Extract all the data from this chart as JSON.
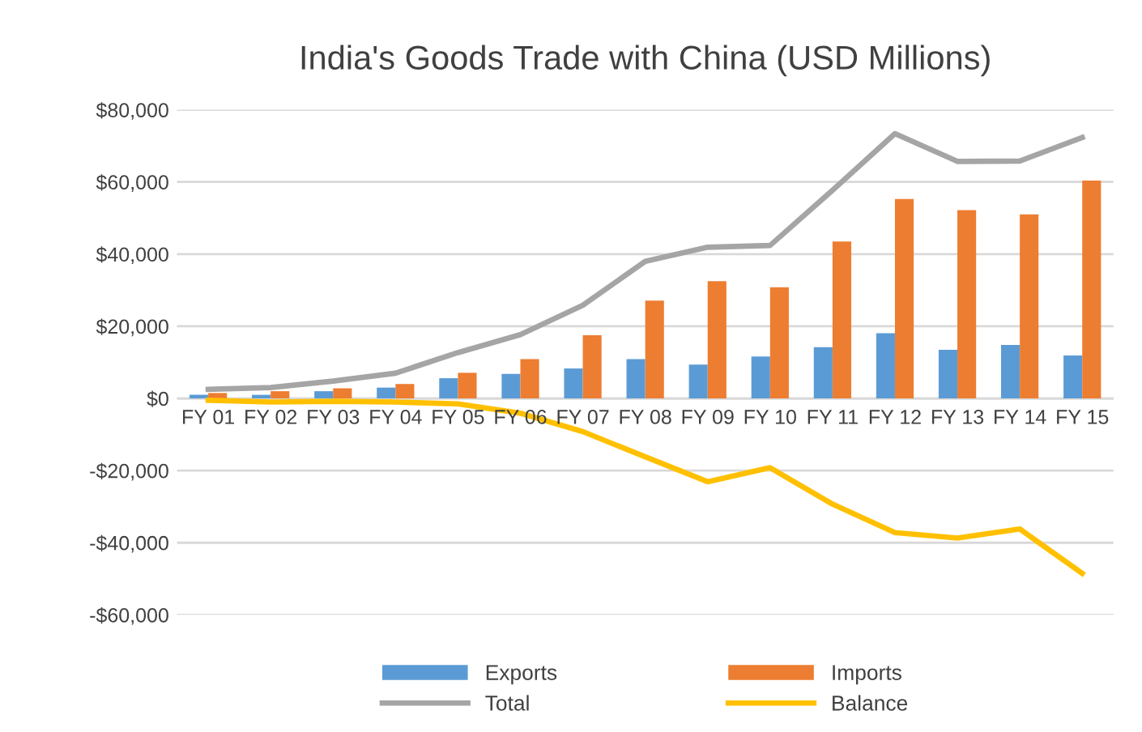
{
  "chart_data": {
    "type": "bar",
    "title": "India's Goods Trade with China (USD Millions)",
    "categories": [
      "FY 01",
      "FY 02",
      "FY 03",
      "FY 04",
      "FY 05",
      "FY 06",
      "FY 07",
      "FY 08",
      "FY 09",
      "FY 10",
      "FY 11",
      "FY 12",
      "FY 13",
      "FY 14",
      "FY 15"
    ],
    "series": [
      {
        "name": "Exports",
        "color": "#5b9bd5",
        "values": [
          1000,
          1000,
          2000,
          3000,
          5600,
          6800,
          8300,
          10900,
          9400,
          11600,
          14200,
          18100,
          13500,
          14800,
          11900
        ]
      },
      {
        "name": "Imports",
        "color": "#ed7d31",
        "values": [
          1500,
          2000,
          2800,
          4000,
          7100,
          10900,
          17500,
          27100,
          32500,
          30800,
          43500,
          55300,
          52200,
          51000,
          60400
        ]
      },
      {
        "name": "Total",
        "type": "line",
        "color": "#a5a5a5",
        "values": [
          2500,
          3000,
          4800,
          7000,
          12700,
          17700,
          25800,
          38000,
          41900,
          42400,
          57700,
          73400,
          65700,
          65800,
          72300
        ]
      },
      {
        "name": "Balance",
        "type": "line",
        "color": "#ffc000",
        "values": [
          -500,
          -1000,
          -800,
          -1000,
          -1500,
          -4100,
          -9200,
          -16200,
          -23100,
          -19200,
          -29300,
          -37200,
          -38700,
          -36200,
          -48500
        ]
      }
    ],
    "ylim": [
      -60000,
      80000
    ],
    "yticks": [
      {
        "value": -60000,
        "label": "-$60,000"
      },
      {
        "value": -40000,
        "label": "-$40,000"
      },
      {
        "value": -20000,
        "label": "-$20,000"
      },
      {
        "value": 0,
        "label": "$0"
      },
      {
        "value": 20000,
        "label": "$20,000"
      },
      {
        "value": 40000,
        "label": "$40,000"
      },
      {
        "value": 60000,
        "label": "$60,000"
      },
      {
        "value": 80000,
        "label": "$80,000"
      }
    ],
    "grid": "y",
    "legend": "bottom"
  }
}
